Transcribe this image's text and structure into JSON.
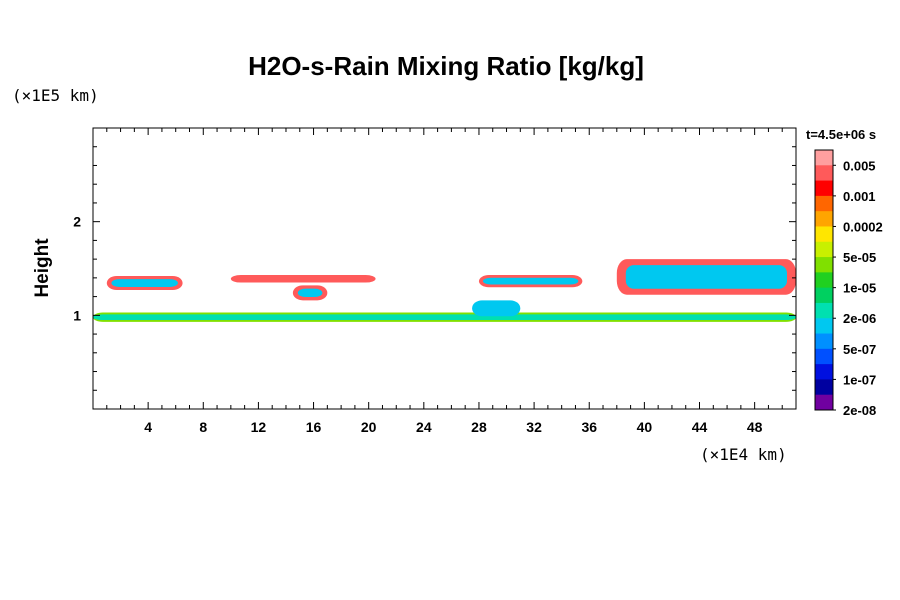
{
  "chart_data": {
    "type": "heatmap",
    "title": "H2O-s-Rain Mixing Ratio [kg/kg]",
    "xlabel": "",
    "ylabel": "Height",
    "x_unit": "(×1E4 km)",
    "y_unit": "(×1E5 km)",
    "time_label": "t=4.5e+06 s",
    "xlim": [
      0,
      51
    ],
    "ylim": [
      0,
      3
    ],
    "x_ticks": [
      4,
      8,
      12,
      16,
      20,
      24,
      28,
      32,
      36,
      40,
      44,
      48
    ],
    "x_tick_labels": [
      "4",
      "8",
      "12",
      "16",
      "20",
      "24",
      "28",
      "32",
      "36",
      "40",
      "44",
      "48"
    ],
    "y_ticks": [
      1,
      2
    ],
    "y_tick_labels": [
      "1",
      "2"
    ],
    "colorbar": {
      "labels": [
        "0.005",
        "0.001",
        "0.0002",
        "5e-05",
        "1e-05",
        "2e-06",
        "5e-07",
        "1e-07",
        "2e-08"
      ],
      "colors": [
        "#ff9f9f",
        "#ff5a5a",
        "#ff0000",
        "#ff6600",
        "#ffa500",
        "#ffe600",
        "#c8f000",
        "#80e000",
        "#20d020",
        "#00d060",
        "#00e0b0",
        "#00c8f0",
        "#0090ff",
        "#0050ff",
        "#0010e0",
        "#0000a0",
        "#7000a0"
      ]
    },
    "regions": [
      {
        "x": [
          0,
          51
        ],
        "y": [
          0.93,
          1.03
        ],
        "level": 7
      },
      {
        "x": [
          0,
          51
        ],
        "y": [
          0.95,
          1.01
        ],
        "level": 10
      },
      {
        "x": [
          1,
          6.5
        ],
        "y": [
          1.27,
          1.42
        ],
        "level": 1
      },
      {
        "x": [
          10,
          20.5
        ],
        "y": [
          1.35,
          1.43
        ],
        "level": 1
      },
      {
        "x": [
          14.5,
          17
        ],
        "y": [
          1.16,
          1.32
        ],
        "level": 1
      },
      {
        "x": [
          28,
          35.5
        ],
        "y": [
          1.3,
          1.43
        ],
        "level": 1
      },
      {
        "x": [
          38,
          51
        ],
        "y": [
          1.22,
          1.6
        ],
        "level": 1
      },
      {
        "x": [
          27.5,
          31
        ],
        "y": [
          0.99,
          1.16
        ],
        "level": 11
      }
    ]
  }
}
